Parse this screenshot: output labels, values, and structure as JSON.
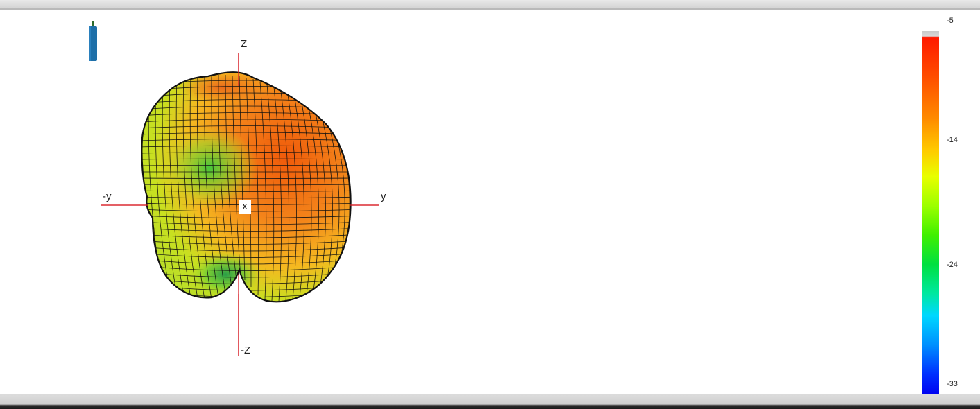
{
  "axes": {
    "z_pos": "Z",
    "z_neg": "-Z",
    "y_pos": "y",
    "y_neg": "-y",
    "x": "x"
  },
  "legend": {
    "ticks": [
      "-5",
      "-14",
      "-24",
      "-33"
    ],
    "max": -5,
    "min": -33
  },
  "colors": {
    "axis": "#d9232a",
    "mesh": "#111111",
    "device": "#1d6fa8"
  }
}
